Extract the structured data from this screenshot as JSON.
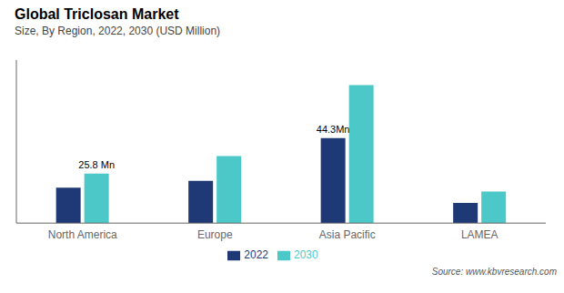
{
  "chart_data": {
    "type": "bar",
    "title": "Global Triclosan Market",
    "subtitle": "Size, By Region, 2022, 2030 (USD Million)",
    "categories": [
      "North America",
      "Europe",
      "Asia Pacific",
      "LAMEA"
    ],
    "series": [
      {
        "name": "2022",
        "color": "#1f3876",
        "values": [
          18.5,
          22.0,
          44.3,
          10.5
        ]
      },
      {
        "name": "2030",
        "color": "#4dc8c8",
        "values": [
          25.8,
          35.0,
          72.0,
          16.5
        ]
      }
    ],
    "ylim": [
      0,
      85
    ],
    "tick_labels": "x",
    "grid": false,
    "legend": "bottom",
    "data_labels": false,
    "annotations": [
      {
        "text": "25.8 Mn",
        "category": "North America",
        "series": "2030"
      },
      {
        "text": "44.3Mn",
        "category": "Asia Pacific",
        "series": "2022"
      }
    ],
    "source": "Source: www.kbvresearch.com"
  }
}
